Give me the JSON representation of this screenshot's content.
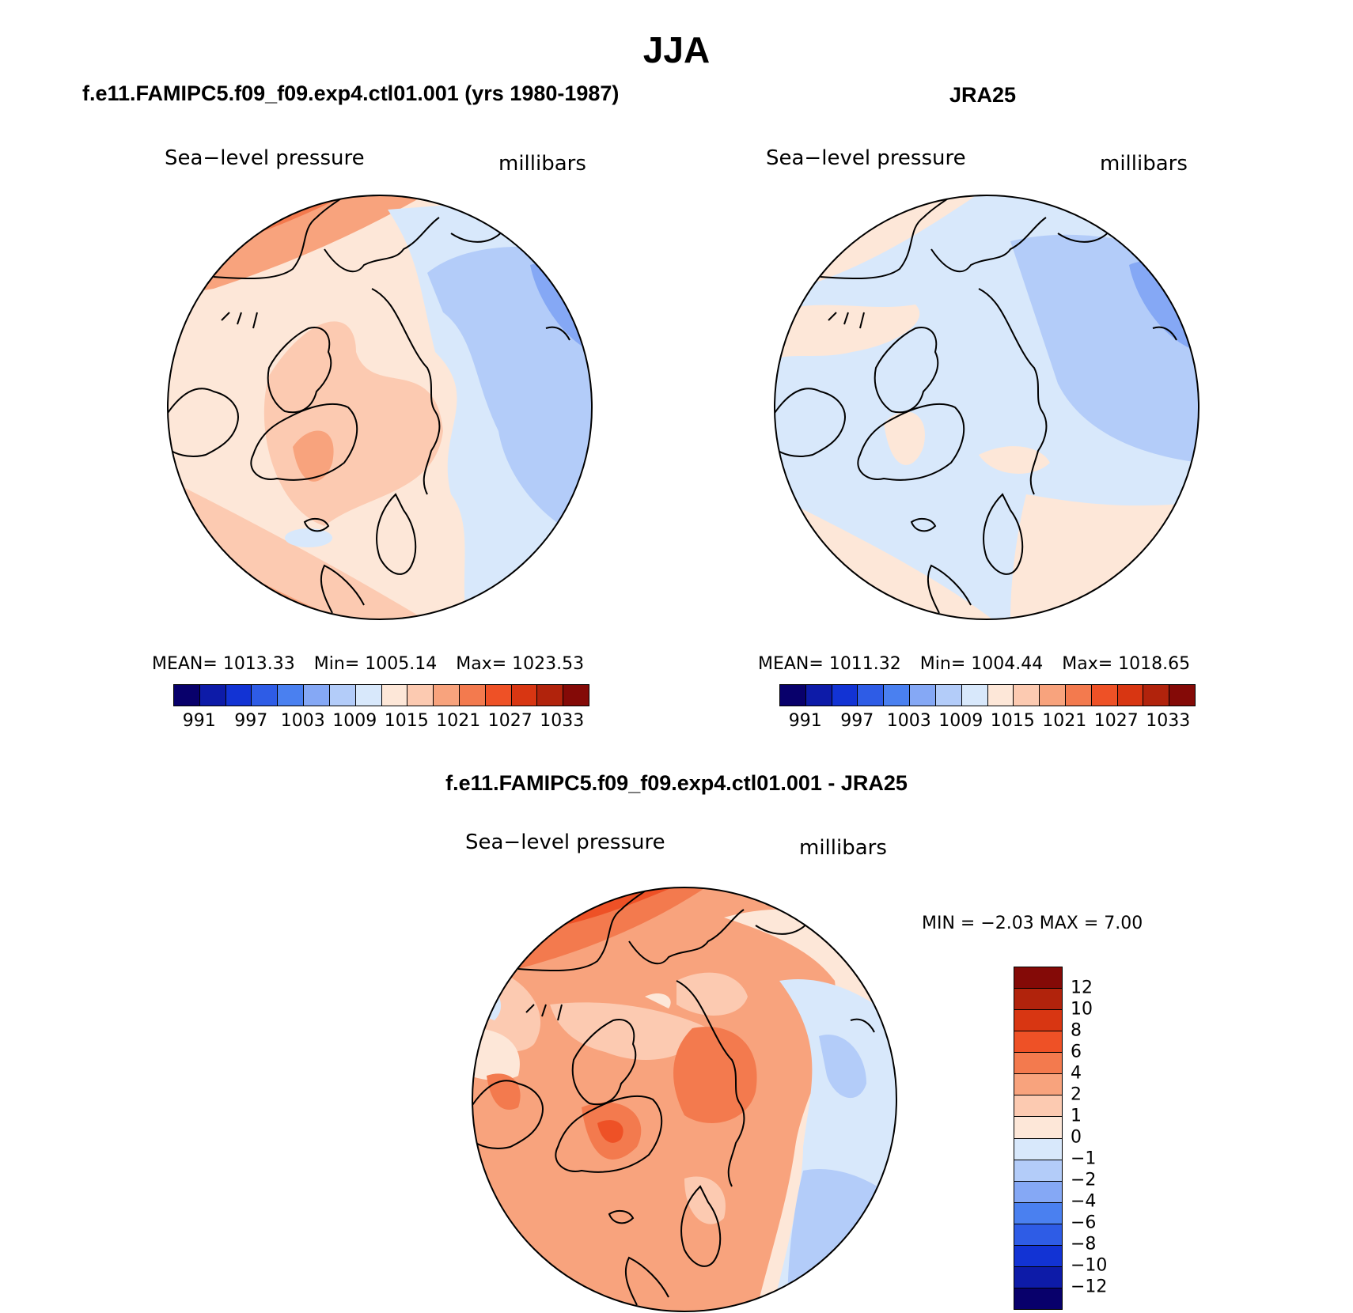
{
  "title": "JJA",
  "colors": {
    "abs_scale": [
      "#08006b",
      "#0d1ba8",
      "#1233d4",
      "#2e5ce6",
      "#4a80f0",
      "#85a8f5",
      "#b3ccf9",
      "#d8e8fb",
      "#fde7d8",
      "#fccab1",
      "#f8a37d",
      "#f37a4e",
      "#ee5126",
      "#d83612",
      "#b1230c",
      "#840a07"
    ],
    "diff_scale": [
      "#08006b",
      "#0d1ba8",
      "#1233d4",
      "#2e5ce6",
      "#4a80f0",
      "#85a8f5",
      "#b3ccf9",
      "#d8e8fb",
      "#fde7d8",
      "#fccab1",
      "#f8a37d",
      "#f37a4e",
      "#ee5126",
      "#d83612",
      "#b1230c",
      "#840a07"
    ],
    "land_outline": "#000000"
  },
  "panels": {
    "model": {
      "heading": "f.e11.FAMIPC5.f09_f09.exp4.ctl01.001 (yrs 1980-1987)",
      "variable": "Sea−level pressure",
      "units": "millibars",
      "mean_text": "MEAN=  1013.33",
      "min_text": "Min=  1005.14",
      "max_text": "Max=  1023.53"
    },
    "obs": {
      "heading": "JRA25",
      "variable": "Sea−level pressure",
      "units": "millibars",
      "mean_text": "MEAN=  1011.32",
      "min_text": "Min=  1004.44",
      "max_text": "Max=  1018.65"
    },
    "diff": {
      "heading": "f.e11.FAMIPC5.f09_f09.exp4.ctl01.001 - JRA25",
      "variable": "Sea−level pressure",
      "units": "millibars",
      "minmax_text": "MIN =   −2.03  MAX =     7.00"
    }
  },
  "abs_colorbar_ticks": [
    "991",
    "997",
    "1003",
    "1009",
    "1015",
    "1021",
    "1027",
    "1033"
  ],
  "diff_colorbar_ticks": [
    "12",
    "10",
    "8",
    "6",
    "4",
    "2",
    "1",
    "0",
    "−1",
    "−2",
    "−4",
    "−6",
    "−8",
    "−10",
    "−12"
  ]
}
